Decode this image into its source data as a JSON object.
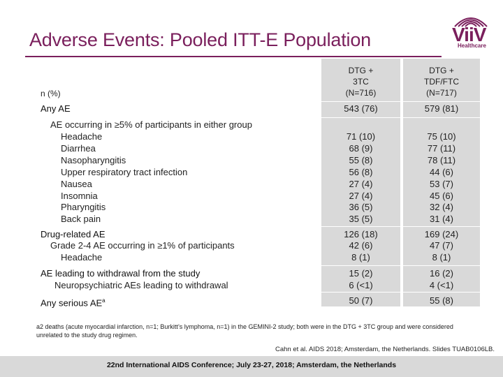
{
  "title": "Adverse Events: Pooled ITT-E Population",
  "logo": {
    "brand": "ViiV",
    "sub": "Healthcare"
  },
  "colors": {
    "title": "#7a1f5c",
    "band": "#d9d9d9"
  },
  "table": {
    "row_header": "n (%)",
    "columns": [
      {
        "line1": "DTG +",
        "line2": "3TC",
        "line3": "(N=716)"
      },
      {
        "line1": "DTG +",
        "line2": "TDF/FTC",
        "line3": "(N=717)"
      }
    ],
    "any_ae": {
      "label": "Any AE",
      "c1": "543 (76)",
      "c2": "579 (81)"
    },
    "common_ae": {
      "label": "AE occurring in ≥5% of participants in either group",
      "items": [
        {
          "label": "Headache",
          "c1": "71 (10)",
          "c2": "75 (10)"
        },
        {
          "label": "Diarrhea",
          "c1": "68 (9)",
          "c2": "77 (11)"
        },
        {
          "label": "Nasopharyngitis",
          "c1": "55 (8)",
          "c2": "78 (11)"
        },
        {
          "label": "Upper respiratory tract infection",
          "c1": "56 (8)",
          "c2": "44 (6)"
        },
        {
          "label": "Nausea",
          "c1": "27 (4)",
          "c2": "53 (7)"
        },
        {
          "label": "Insomnia",
          "c1": "27 (4)",
          "c2": "45 (6)"
        },
        {
          "label": "Pharyngitis",
          "c1": "36 (5)",
          "c2": "32 (4)"
        },
        {
          "label": "Back pain",
          "c1": "35 (5)",
          "c2": "31 (4)"
        }
      ]
    },
    "drug_related": {
      "label": "Drug-related AE",
      "c1": "126 (18)",
      "c2": "169 (24)",
      "sub_label": "Grade 2-4 AE occurring in ≥1% of participants",
      "sub_c1": "42 (6)",
      "sub_c2": "47 (7)",
      "item_label": "Headache",
      "item_c1": "8 (1)",
      "item_c2": "8 (1)"
    },
    "withdrawal": {
      "label": "AE leading to withdrawal from the study",
      "c1": "15 (2)",
      "c2": "16 (2)",
      "sub_label": "Neuropsychiatric AEs leading to withdrawal",
      "sub_c1": "6 (<1)",
      "sub_c2": "4 (<1)"
    },
    "serious": {
      "label": "Any serious AE",
      "sup": "a",
      "c1": "50 (7)",
      "c2": "55 (8)"
    }
  },
  "footnote": "a2 deaths (acute myocardial infarction, n=1; Burkitt’s lymphoma, n=1) in the GEMINI-2 study; both were in the DTG + 3TC group and were considered unrelated to the study drug regimen.",
  "citation": "Cahn et al. AIDS 2018; Amsterdam, the Netherlands. Slides TUAB0106LB.",
  "footer": "22nd International AIDS Conference; July 23-27, 2018; Amsterdam, the Netherlands"
}
